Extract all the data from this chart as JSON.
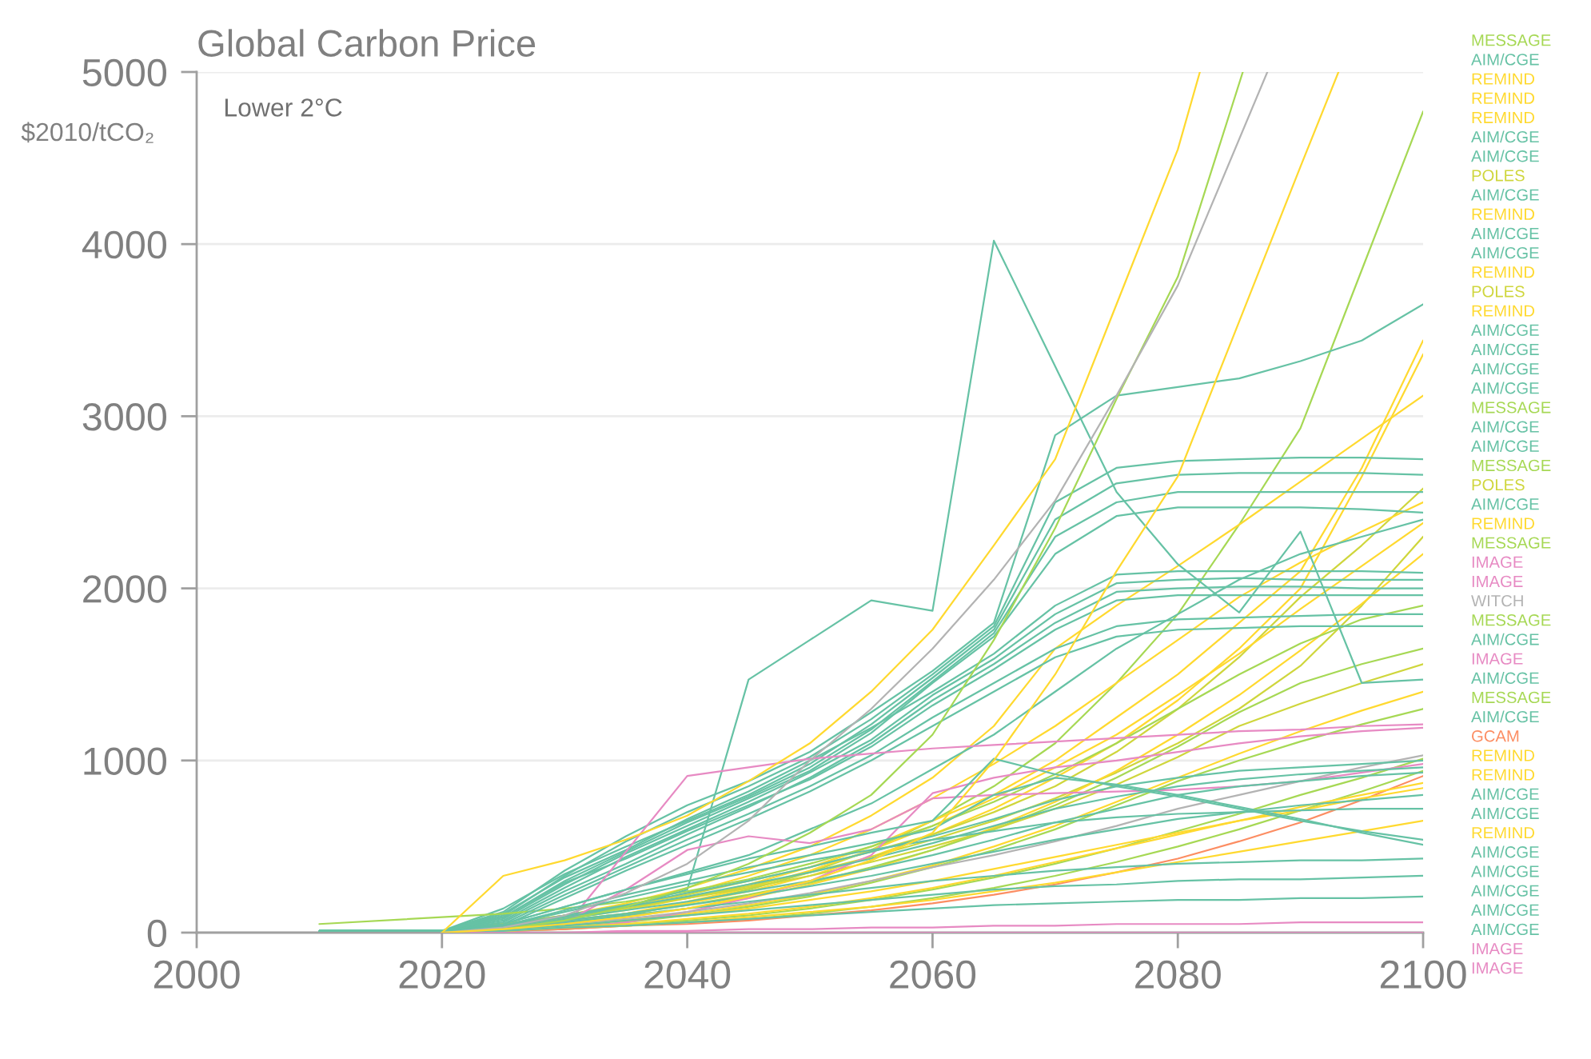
{
  "chart_data": {
    "type": "line",
    "title": "Global Carbon Price",
    "ylabel": "$2010/tCO₂",
    "annotations": [
      "Lower 2°C"
    ],
    "x": [
      2010,
      2020,
      2025,
      2030,
      2035,
      2040,
      2045,
      2050,
      2055,
      2060,
      2065,
      2070,
      2075,
      2080,
      2085,
      2090,
      2095,
      2100
    ],
    "xlim": [
      2000,
      2100
    ],
    "xticks": [
      2000,
      2020,
      2040,
      2060,
      2080,
      2100
    ],
    "ylim": [
      0,
      5000
    ],
    "yticks": [
      0,
      1000,
      2000,
      3000,
      4000,
      5000
    ],
    "grid": "y",
    "series": [
      {
        "name": "MESSAGE",
        "color": "#a6d854",
        "values": [
          null,
          0,
          20,
          50,
          100,
          170,
          250,
          350,
          480,
          650,
          850,
          1100,
          1450,
          1850,
          2370,
          2930,
          3850,
          4770
        ]
      },
      {
        "name": "AIM/CGE",
        "color": "#66c2a5",
        "values": [
          10,
          10,
          120,
          360,
          560,
          740,
          880,
          1050,
          1280,
          1520,
          1800,
          2890,
          3120,
          3170,
          3220,
          3320,
          3440,
          3650
        ]
      },
      {
        "name": "REMIND",
        "color": "#ffd92f",
        "values": [
          null,
          0,
          30,
          80,
          130,
          200,
          280,
          380,
          500,
          650,
          800,
          1000,
          1250,
          1500,
          1800,
          2100,
          2700,
          3440
        ]
      },
      {
        "name": "REMIND",
        "color": "#ffd92f",
        "values": [
          null,
          0,
          30,
          70,
          110,
          170,
          240,
          330,
          440,
          570,
          720,
          900,
          1100,
          1350,
          1650,
          2000,
          2650,
          3360
        ]
      },
      {
        "name": "REMIND",
        "color": "#ffd92f",
        "values": [
          null,
          0,
          40,
          100,
          170,
          260,
          370,
          500,
          680,
          900,
          1200,
          1650,
          1900,
          2130,
          2370,
          2620,
          2870,
          3120
        ]
      },
      {
        "name": "AIM/CGE",
        "color": "#66c2a5",
        "values": [
          10,
          10,
          100,
          330,
          530,
          700,
          850,
          1020,
          1240,
          1500,
          1780,
          2500,
          2700,
          2740,
          2750,
          2760,
          2760,
          2750
        ]
      },
      {
        "name": "AIM/CGE",
        "color": "#66c2a5",
        "values": [
          10,
          10,
          140,
          340,
          500,
          650,
          800,
          980,
          1210,
          1480,
          1760,
          2400,
          2610,
          2660,
          2670,
          2670,
          2670,
          2660
        ]
      },
      {
        "name": "POLES",
        "color": "#cfd63c",
        "values": [
          null,
          0,
          50,
          100,
          160,
          220,
          300,
          380,
          470,
          570,
          700,
          850,
          1050,
          1300,
          1600,
          1950,
          2250,
          2580
        ]
      },
      {
        "name": "AIM/CGE",
        "color": "#66c2a5",
        "values": [
          10,
          10,
          90,
          300,
          470,
          640,
          790,
          960,
          1180,
          1460,
          1740,
          2300,
          2500,
          2560,
          2560,
          2560,
          2560,
          2560
        ]
      },
      {
        "name": "REMIND",
        "color": "#ffd92f",
        "values": [
          null,
          0,
          30,
          80,
          150,
          230,
          330,
          450,
          600,
          780,
          980,
          1200,
          1450,
          1700,
          1950,
          2150,
          2330,
          2500
        ]
      },
      {
        "name": "AIM/CGE",
        "color": "#66c2a5",
        "values": [
          10,
          10,
          80,
          280,
          460,
          620,
          780,
          940,
          1160,
          1450,
          1720,
          2200,
          2420,
          2470,
          2470,
          2470,
          2460,
          2440
        ]
      },
      {
        "name": "AIM/CGE",
        "color": "#66c2a5",
        "values": [
          10,
          10,
          50,
          150,
          250,
          350,
          450,
          600,
          750,
          950,
          1150,
          1400,
          1650,
          1850,
          2050,
          2200,
          2300,
          2400
        ]
      },
      {
        "name": "REMIND",
        "color": "#ffd92f",
        "values": [
          null,
          0,
          20,
          60,
          110,
          180,
          260,
          360,
          480,
          620,
          780,
          960,
          1150,
          1380,
          1620,
          1880,
          2130,
          2380
        ]
      },
      {
        "name": "POLES",
        "color": "#cfd63c",
        "values": [
          null,
          0,
          40,
          90,
          140,
          200,
          270,
          350,
          440,
          540,
          650,
          780,
          930,
          1100,
          1300,
          1550,
          1900,
          2300
        ]
      },
      {
        "name": "REMIND",
        "color": "#ffd92f",
        "values": [
          null,
          0,
          20,
          50,
          90,
          140,
          200,
          280,
          370,
          480,
          610,
          760,
          940,
          1150,
          1380,
          1640,
          1910,
          2200
        ]
      },
      {
        "name": "AIM/CGE",
        "color": "#66c2a5",
        "values": [
          10,
          10,
          110,
          320,
          480,
          660,
          820,
          1000,
          1190,
          1400,
          1620,
          1900,
          2080,
          2100,
          2100,
          2100,
          2100,
          2090
        ]
      },
      {
        "name": "AIM/CGE",
        "color": "#66c2a5",
        "values": [
          10,
          10,
          70,
          260,
          440,
          600,
          760,
          930,
          1120,
          1380,
          1590,
          1850,
          2030,
          2050,
          2060,
          2050,
          2050,
          2050
        ]
      },
      {
        "name": "AIM/CGE",
        "color": "#66c2a5",
        "values": [
          10,
          10,
          60,
          240,
          400,
          570,
          730,
          900,
          1100,
          1350,
          1560,
          1800,
          1980,
          2000,
          2010,
          2010,
          2000,
          2000
        ]
      },
      {
        "name": "AIM/CGE",
        "color": "#66c2a5",
        "values": [
          10,
          10,
          90,
          290,
          430,
          590,
          740,
          890,
          1080,
          1320,
          1530,
          1760,
          1930,
          1960,
          1960,
          1960,
          1960,
          1960
        ]
      },
      {
        "name": "MESSAGE",
        "color": "#a6d854",
        "values": [
          50,
          90,
          110,
          140,
          180,
          240,
          310,
          400,
          500,
          620,
          760,
          920,
          1100,
          1300,
          1500,
          1680,
          1820,
          1900
        ]
      },
      {
        "name": "AIM/CGE",
        "color": "#66c2a5",
        "values": [
          10,
          10,
          50,
          220,
          380,
          540,
          690,
          850,
          1030,
          1250,
          1450,
          1650,
          1780,
          1820,
          1830,
          1840,
          1850,
          1850
        ]
      },
      {
        "name": "AIM/CGE",
        "color": "#66c2a5",
        "values": [
          10,
          10,
          40,
          200,
          360,
          510,
          660,
          820,
          1000,
          1200,
          1400,
          1600,
          1720,
          1760,
          1770,
          1780,
          1780,
          1780
        ]
      },
      {
        "name": "MESSAGE",
        "color": "#a6d854",
        "values": [
          null,
          0,
          30,
          70,
          110,
          160,
          220,
          290,
          380,
          480,
          600,
          740,
          900,
          1080,
          1280,
          1450,
          1560,
          1650
        ]
      },
      {
        "name": "POLES",
        "color": "#cfd63c",
        "values": [
          null,
          0,
          50,
          100,
          150,
          200,
          260,
          330,
          410,
          500,
          600,
          720,
          860,
          1020,
          1200,
          1330,
          1450,
          1560
        ]
      },
      {
        "name": "AIM/CGE",
        "color": "#66c2a5",
        "values": [
          10,
          10,
          40,
          100,
          150,
          250,
          1470,
          1700,
          1930,
          1870,
          4020,
          3290,
          2560,
          2140,
          1860,
          2330,
          1450,
          1470
        ]
      },
      {
        "name": "REMIND",
        "color": "#ffd92f",
        "values": [
          null,
          0,
          20,
          40,
          70,
          110,
          160,
          220,
          300,
          390,
          500,
          620,
          760,
          900,
          1040,
          1170,
          1290,
          1400
        ]
      },
      {
        "name": "MESSAGE",
        "color": "#a6d854",
        "values": [
          null,
          0,
          10,
          30,
          60,
          100,
          150,
          210,
          290,
          380,
          480,
          600,
          740,
          880,
          1000,
          1110,
          1210,
          1300
        ]
      },
      {
        "name": "IMAGE",
        "color": "#e78ac3",
        "values": [
          null,
          0,
          0,
          30,
          470,
          910,
          960,
          1010,
          1040,
          1070,
          1090,
          1110,
          1130,
          1150,
          1170,
          1180,
          1200,
          1210
        ]
      },
      {
        "name": "IMAGE",
        "color": "#e78ac3",
        "values": [
          null,
          0,
          10,
          20,
          60,
          120,
          200,
          300,
          450,
          810,
          900,
          960,
          1000,
          1050,
          1100,
          1140,
          1170,
          1190
        ]
      },
      {
        "name": "WITCH",
        "color": "#b3b3b3",
        "values": [
          null,
          0,
          20,
          50,
          80,
          120,
          170,
          230,
          300,
          380,
          450,
          530,
          620,
          720,
          800,
          880,
          960,
          1030
        ]
      },
      {
        "name": "MESSAGE",
        "color": "#a6d854",
        "values": [
          null,
          0,
          10,
          30,
          50,
          70,
          100,
          140,
          190,
          250,
          320,
          400,
          490,
          590,
          690,
          800,
          900,
          1010
        ]
      },
      {
        "name": "AIM/CGE",
        "color": "#66c2a5",
        "values": [
          10,
          10,
          30,
          100,
          160,
          230,
          300,
          380,
          470,
          560,
          660,
          770,
          850,
          900,
          940,
          960,
          980,
          1000
        ]
      },
      {
        "name": "IMAGE",
        "color": "#e78ac3",
        "values": [
          null,
          0,
          20,
          60,
          250,
          480,
          560,
          520,
          600,
          780,
          800,
          810,
          820,
          830,
          850,
          880,
          930,
          980
        ]
      },
      {
        "name": "AIM/CGE",
        "color": "#66c2a5",
        "values": [
          10,
          10,
          30,
          90,
          150,
          210,
          280,
          350,
          430,
          520,
          620,
          720,
          790,
          850,
          890,
          920,
          940,
          960
        ]
      },
      {
        "name": "MESSAGE",
        "color": "#a6d854",
        "values": [
          null,
          0,
          10,
          20,
          40,
          60,
          80,
          110,
          150,
          200,
          260,
          330,
          410,
          500,
          600,
          710,
          820,
          940
        ]
      },
      {
        "name": "AIM/CGE",
        "color": "#66c2a5",
        "values": [
          10,
          10,
          20,
          80,
          130,
          180,
          240,
          300,
          370,
          450,
          540,
          640,
          720,
          800,
          850,
          880,
          910,
          930
        ]
      },
      {
        "name": "GCAM",
        "color": "#fc8d62",
        "values": [
          null,
          0,
          10,
          20,
          40,
          50,
          70,
          100,
          130,
          170,
          220,
          280,
          350,
          430,
          530,
          640,
          770,
          910
        ]
      },
      {
        "name": "REMIND",
        "color": "#ffd92f",
        "values": [
          null,
          0,
          10,
          30,
          50,
          80,
          110,
          150,
          200,
          260,
          330,
          410,
          490,
          570,
          650,
          730,
          800,
          870
        ]
      },
      {
        "name": "REMIND",
        "color": "#ffd92f",
        "values": [
          null,
          0,
          20,
          40,
          70,
          100,
          140,
          190,
          240,
          300,
          370,
          440,
          510,
          580,
          650,
          710,
          780,
          840
        ]
      },
      {
        "name": "AIM/CGE",
        "color": "#66c2a5",
        "values": [
          10,
          10,
          20,
          70,
          110,
          160,
          210,
          270,
          330,
          400,
          470,
          540,
          600,
          660,
          700,
          740,
          770,
          800
        ]
      },
      {
        "name": "AIM/CGE",
        "color": "#66c2a5",
        "values": [
          10,
          10,
          40,
          120,
          200,
          280,
          350,
          420,
          480,
          540,
          590,
          640,
          670,
          690,
          700,
          710,
          720,
          720
        ]
      },
      {
        "name": "REMIND",
        "color": "#ffd92f",
        "values": [
          null,
          0,
          10,
          30,
          40,
          60,
          90,
          120,
          150,
          190,
          240,
          290,
          350,
          410,
          470,
          530,
          590,
          650
        ]
      },
      {
        "name": "AIM/CGE",
        "color": "#66c2a5",
        "values": [
          10,
          10,
          50,
          150,
          250,
          340,
          430,
          500,
          580,
          650,
          1010,
          920,
          850,
          790,
          720,
          650,
          590,
          540
        ]
      },
      {
        "name": "AIM/CGE",
        "color": "#66c2a5",
        "values": [
          10,
          10,
          40,
          130,
          220,
          300,
          380,
          450,
          520,
          600,
          800,
          900,
          860,
          800,
          730,
          660,
          580,
          510
        ]
      },
      {
        "name": "AIM/CGE",
        "color": "#66c2a5",
        "values": [
          10,
          10,
          20,
          60,
          100,
          140,
          180,
          220,
          260,
          300,
          330,
          360,
          380,
          400,
          410,
          420,
          420,
          430
        ]
      },
      {
        "name": "AIM/CGE",
        "color": "#66c2a5",
        "values": [
          10,
          10,
          20,
          40,
          70,
          100,
          130,
          160,
          190,
          220,
          250,
          270,
          280,
          300,
          310,
          310,
          320,
          330
        ]
      },
      {
        "name": "AIM/CGE",
        "color": "#66c2a5",
        "values": [
          10,
          10,
          10,
          30,
          40,
          60,
          80,
          100,
          120,
          140,
          160,
          170,
          180,
          190,
          190,
          200,
          200,
          210
        ]
      },
      {
        "name": "IMAGE",
        "color": "#e78ac3",
        "values": [
          null,
          0,
          0,
          0,
          10,
          10,
          20,
          20,
          30,
          30,
          40,
          40,
          50,
          50,
          50,
          60,
          60,
          60
        ]
      },
      {
        "name": "IMAGE",
        "color": "#e78ac3",
        "values": [
          null,
          null,
          null,
          0,
          0,
          0,
          0,
          0,
          0,
          0,
          0,
          0,
          0,
          0,
          0,
          0,
          0,
          0
        ]
      },
      {
        "color": "#ffd92f",
        "x": [
          2020,
          2025,
          2030,
          2035,
          2040,
          2045,
          2050,
          2055,
          2060,
          2065,
          2070,
          2075,
          2080,
          2081.8
        ],
        "values": [
          0,
          330,
          420,
          540,
          680,
          880,
          1100,
          1400,
          1760,
          2250,
          2750,
          3650,
          4550,
          5000
        ]
      },
      {
        "color": "#a6d854",
        "x": [
          2020,
          2025,
          2030,
          2035,
          2040,
          2045,
          2050,
          2055,
          2060,
          2065,
          2070,
          2075,
          2080,
          2085.3
        ],
        "values": [
          0,
          20,
          70,
          150,
          260,
          400,
          580,
          800,
          1150,
          1700,
          2350,
          3100,
          3810,
          5000
        ]
      },
      {
        "color": "#b3b3b3",
        "x": [
          2020,
          2025,
          2030,
          2035,
          2040,
          2045,
          2050,
          2055,
          2060,
          2065,
          2070,
          2075,
          2080,
          2087.3
        ],
        "values": [
          0,
          30,
          100,
          230,
          400,
          650,
          1000,
          1300,
          1650,
          2050,
          2510,
          3120,
          3760,
          5000
        ]
      },
      {
        "color": "#ffd92f",
        "x": [
          2020,
          2025,
          2030,
          2035,
          2040,
          2045,
          2050,
          2055,
          2060,
          2065,
          2070,
          2075,
          2080,
          2085,
          2090,
          2093.1
        ],
        "values": [
          0,
          20,
          50,
          90,
          140,
          210,
          300,
          420,
          580,
          1000,
          1500,
          2100,
          2650,
          3550,
          4450,
          5000
        ]
      }
    ]
  }
}
